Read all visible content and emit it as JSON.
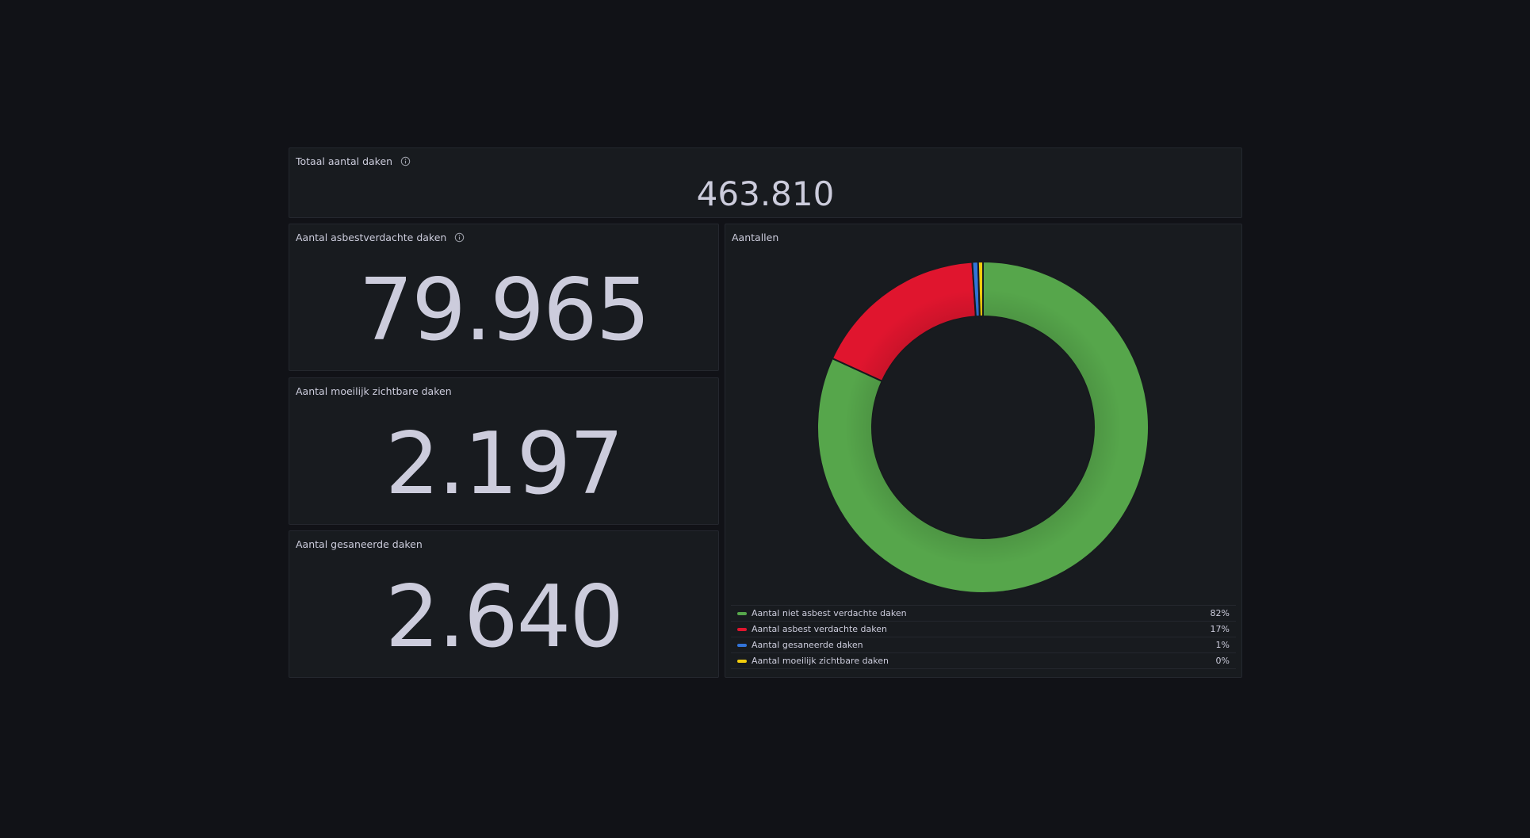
{
  "panels": {
    "total": {
      "title": "Totaal aantal daken",
      "value": "463.810",
      "info_icon": "info-icon"
    },
    "asbest": {
      "title": "Aantal asbestverdachte daken",
      "value": "79.965",
      "info_icon": "info-icon"
    },
    "moeilijk": {
      "title": "Aantal moeilijk zichtbare daken",
      "value": "2.197"
    },
    "gesaneerd": {
      "title": "Aantal gesaneerde daken",
      "value": "2.640"
    },
    "aantallen": {
      "title": "Aantallen"
    }
  },
  "chart_data": {
    "type": "pie",
    "variant": "donut",
    "legend_placement": "bottom",
    "slices": [
      {
        "name": "Aantal niet asbest verdachte daken",
        "percent_label": "82%",
        "value": 381845,
        "color": "#56a64b"
      },
      {
        "name": "Aantal asbest verdachte daken",
        "percent_label": "17%",
        "value": 79965,
        "color": "#e0152e"
      },
      {
        "name": "Aantal gesaneerde daken",
        "percent_label": "1%",
        "value": 2640,
        "color": "#3274d9"
      },
      {
        "name": "Aantal moeilijk zichtbare daken",
        "percent_label": "0%",
        "value": 2197,
        "color": "#f2cc0c"
      }
    ]
  },
  "colors": {
    "background": "#111217",
    "panel": "#181b1f",
    "text": "#ccccdc"
  }
}
